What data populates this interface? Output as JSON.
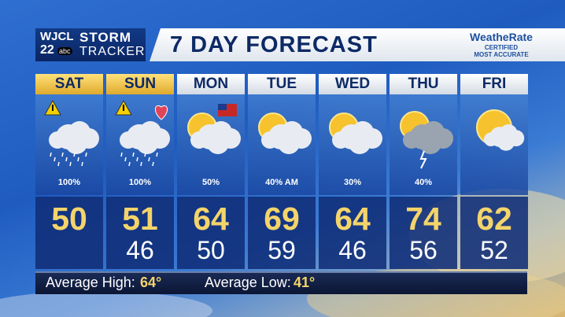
{
  "header": {
    "station": "WJCL",
    "channel": "22",
    "network": "abc",
    "brand_top": "STORM",
    "brand_bottom": "TRACKER",
    "title": "7 DAY FORECAST",
    "badge": {
      "name": "WeatheRate",
      "line1": "CERTIFIED",
      "line2": "MOST ACCURATE"
    }
  },
  "days": [
    {
      "day": "SAT",
      "precip": "100%",
      "high": 50
    },
    {
      "day": "SUN",
      "precip": "100%",
      "high": 51,
      "low": 46
    },
    {
      "day": "MON",
      "precip": "50%",
      "high": 64,
      "low": 50
    },
    {
      "day": "TUE",
      "precip": "40% AM",
      "high": 69,
      "low": 59
    },
    {
      "day": "WED",
      "precip": "30%",
      "high": 64,
      "low": 46
    },
    {
      "day": "THU",
      "precip": "40%",
      "high": 74,
      "low": 56
    },
    {
      "day": "FRI",
      "high": 62,
      "low": 52
    }
  ],
  "footer": {
    "avg_high_label": "Average High:",
    "avg_high": "64°",
    "avg_low_label": "Average Low:",
    "avg_low": "41°"
  }
}
